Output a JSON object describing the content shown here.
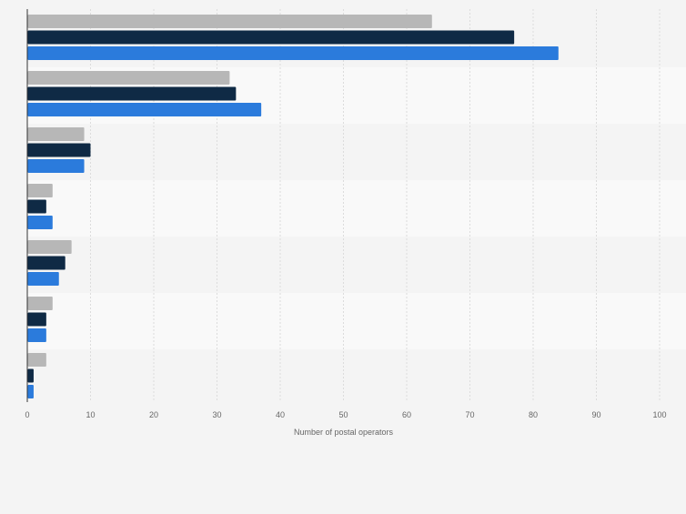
{
  "chart_data": {
    "type": "bar",
    "orientation": "horizontal",
    "categories": [
      "",
      "",
      "",
      "",
      "",
      "",
      ""
    ],
    "series": [
      {
        "color": "#b7b7b7",
        "values": [
          64,
          32,
          9,
          4,
          7,
          4,
          3
        ]
      },
      {
        "color": "#0f2a45",
        "values": [
          77,
          33,
          10,
          3,
          6,
          3,
          1
        ]
      },
      {
        "color": "#2b7bdc",
        "values": [
          84,
          37,
          9,
          4,
          5,
          3,
          1
        ]
      }
    ],
    "xlabel": "Number of postal operators",
    "xlim": [
      0,
      100
    ],
    "xticks": [
      0,
      10,
      20,
      30,
      40,
      50,
      60,
      70,
      80,
      90,
      100
    ],
    "grid": true,
    "legend": "none"
  }
}
